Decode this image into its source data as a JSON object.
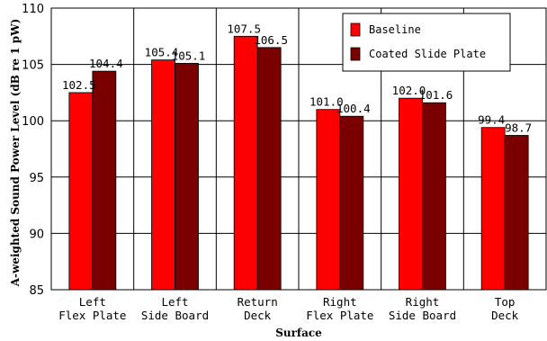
{
  "chart_data": {
    "type": "bar",
    "title": "",
    "xlabel": "Surface",
    "ylabel": "A-weighted Sound Power Level (dB re 1 pW)",
    "ylim": [
      85,
      110
    ],
    "yticks": [
      85,
      90,
      95,
      100,
      105,
      110
    ],
    "grid": true,
    "legend_position": "top-right",
    "categories": [
      [
        "Left",
        "Flex Plate"
      ],
      [
        "Left",
        "Side Board"
      ],
      [
        "Return",
        "Deck"
      ],
      [
        "Right",
        "Flex Plate"
      ],
      [
        "Right",
        "Side Board"
      ],
      [
        "Top",
        "Deck"
      ]
    ],
    "series": [
      {
        "name": "Baseline",
        "color": "#ff0000",
        "values": [
          102.5,
          105.4,
          107.5,
          101.0,
          102.0,
          99.4
        ],
        "labels": [
          "102.5",
          "105.4",
          "107.5",
          "101.0",
          "102.0",
          "99.4"
        ]
      },
      {
        "name": "Coated Slide Plate",
        "color": "#7a0000",
        "values": [
          104.4,
          105.1,
          106.5,
          100.4,
          101.6,
          98.7
        ],
        "labels": [
          "104.4",
          "105.1",
          "106.5",
          "100.4",
          "101.6",
          "98.7"
        ]
      }
    ]
  }
}
